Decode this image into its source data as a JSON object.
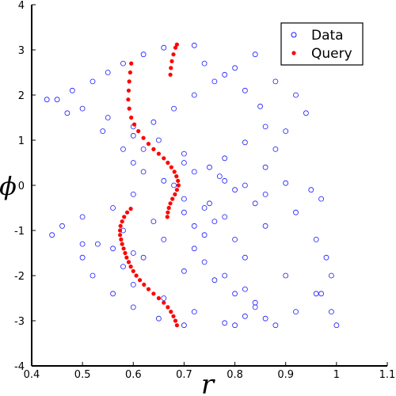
{
  "chart_data": {
    "type": "scatter",
    "title": "",
    "xlabel": "r",
    "ylabel": "ϕ",
    "xlim": [
      0.4,
      1.1
    ],
    "ylim": [
      -4,
      4
    ],
    "xticks": [
      "0.4",
      "0.5",
      "0.6",
      "0.7",
      "0.8",
      "0.9",
      "1",
      "1.1"
    ],
    "yticks": [
      "4",
      "3",
      "2",
      "1",
      "0",
      "-1",
      "-2",
      "-3",
      "-4"
    ],
    "grid": false,
    "legend": {
      "position": "top-right",
      "entries": [
        "Data",
        "Query"
      ]
    },
    "colors": {
      "data": "#1a1aff",
      "query": "#ff0000"
    },
    "series": [
      {
        "name": "Data",
        "marker": "open-circle",
        "sampled_points": [
          [
            0.45,
            1.9
          ],
          [
            0.48,
            2.1
          ],
          [
            0.52,
            2.3
          ],
          [
            0.55,
            2.5
          ],
          [
            0.58,
            2.7
          ],
          [
            0.62,
            2.9
          ],
          [
            0.66,
            3.05
          ],
          [
            0.72,
            3.1
          ],
          [
            0.5,
            1.7
          ],
          [
            0.55,
            1.5
          ],
          [
            0.6,
            1.3
          ],
          [
            0.65,
            1.0
          ],
          [
            0.7,
            0.7
          ],
          [
            0.75,
            0.4
          ],
          [
            0.78,
            0.1
          ],
          [
            0.8,
            -0.1
          ],
          [
            0.75,
            -0.4
          ],
          [
            0.7,
            -0.6
          ],
          [
            0.64,
            -0.8
          ],
          [
            0.58,
            -1.0
          ],
          [
            0.53,
            -1.3
          ],
          [
            0.5,
            -1.6
          ],
          [
            0.52,
            -2.0
          ],
          [
            0.56,
            -2.4
          ],
          [
            0.6,
            -2.7
          ],
          [
            0.65,
            -2.95
          ],
          [
            0.7,
            -3.1
          ],
          [
            0.43,
            1.9
          ],
          [
            0.47,
            1.6
          ],
          [
            0.54,
            1.2
          ],
          [
            0.62,
            0.8
          ],
          [
            0.7,
            0.5
          ],
          [
            0.77,
            0.2
          ],
          [
            0.82,
            0.0
          ],
          [
            0.86,
            -0.2
          ],
          [
            0.84,
            -0.4
          ],
          [
            0.78,
            -0.7
          ],
          [
            0.72,
            -0.9
          ],
          [
            0.66,
            -1.2
          ],
          [
            0.6,
            -1.5
          ],
          [
            0.58,
            -1.8
          ],
          [
            0.6,
            -2.2
          ],
          [
            0.66,
            -2.5
          ],
          [
            0.72,
            -2.8
          ],
          [
            0.78,
            -3.05
          ],
          [
            0.88,
            2.3
          ],
          [
            0.92,
            2.0
          ],
          [
            0.94,
            1.6
          ],
          [
            0.9,
            1.2
          ],
          [
            0.88,
            0.8
          ],
          [
            0.86,
            0.4
          ],
          [
            0.9,
            0.05
          ],
          [
            0.95,
            -0.1
          ],
          [
            0.97,
            -0.3
          ],
          [
            0.92,
            -0.6
          ],
          [
            0.86,
            -0.9
          ],
          [
            0.8,
            -1.2
          ],
          [
            0.82,
            -1.6
          ],
          [
            0.9,
            -2.0
          ],
          [
            0.97,
            -2.4
          ],
          [
            0.99,
            -2.8
          ],
          [
            1.0,
            -3.1
          ],
          [
            0.96,
            -1.2
          ],
          [
            0.98,
            -1.6
          ],
          [
            0.99,
            -2.0
          ],
          [
            0.96,
            -2.4
          ],
          [
            0.92,
            -2.8
          ],
          [
            0.88,
            -3.1
          ],
          [
            0.84,
            2.9
          ],
          [
            0.8,
            2.6
          ],
          [
            0.76,
            2.3
          ],
          [
            0.72,
            2.0
          ],
          [
            0.68,
            1.7
          ],
          [
            0.64,
            1.4
          ],
          [
            0.6,
            1.1
          ],
          [
            0.58,
            0.8
          ],
          [
            0.6,
            0.5
          ],
          [
            0.62,
            0.3
          ],
          [
            0.66,
            0.1
          ],
          [
            0.6,
            -0.2
          ],
          [
            0.56,
            -0.5
          ],
          [
            0.5,
            -0.7
          ],
          [
            0.46,
            -0.9
          ],
          [
            0.44,
            -1.1
          ],
          [
            0.5,
            -1.3
          ],
          [
            0.56,
            -1.4
          ],
          [
            0.62,
            -1.6
          ],
          [
            0.7,
            -1.9
          ],
          [
            0.76,
            -2.1
          ],
          [
            0.8,
            -2.4
          ],
          [
            0.84,
            -2.7
          ],
          [
            0.86,
            -2.95
          ],
          [
            0.74,
            2.7
          ],
          [
            0.78,
            2.45
          ],
          [
            0.82,
            2.1
          ],
          [
            0.85,
            1.75
          ],
          [
            0.86,
            1.3
          ],
          [
            0.82,
            0.95
          ],
          [
            0.78,
            0.6
          ],
          [
            0.72,
            0.3
          ],
          [
            0.68,
            0.0
          ],
          [
            0.7,
            -0.3
          ],
          [
            0.74,
            -0.5
          ],
          [
            0.76,
            -0.8
          ],
          [
            0.74,
            -1.1
          ],
          [
            0.72,
            -1.4
          ],
          [
            0.74,
            -1.7
          ],
          [
            0.78,
            -2.0
          ],
          [
            0.82,
            -2.3
          ],
          [
            0.84,
            -2.6
          ],
          [
            0.82,
            -2.9
          ],
          [
            0.8,
            -3.1
          ]
        ]
      },
      {
        "name": "Query",
        "marker": "filled-dot",
        "points": [
          [
            0.673,
            2.45
          ],
          [
            0.674,
            2.6
          ],
          [
            0.676,
            2.75
          ],
          [
            0.679,
            2.9
          ],
          [
            0.683,
            3.05
          ],
          [
            0.686,
            3.12
          ],
          [
            0.596,
            2.7
          ],
          [
            0.594,
            2.5
          ],
          [
            0.592,
            2.3
          ],
          [
            0.591,
            2.1
          ],
          [
            0.59,
            1.9
          ],
          [
            0.592,
            1.7
          ],
          [
            0.596,
            1.5
          ],
          [
            0.602,
            1.35
          ],
          [
            0.61,
            1.2
          ],
          [
            0.62,
            1.05
          ],
          [
            0.63,
            0.92
          ],
          [
            0.64,
            0.8
          ],
          [
            0.65,
            0.7
          ],
          [
            0.66,
            0.6
          ],
          [
            0.668,
            0.5
          ],
          [
            0.675,
            0.4
          ],
          [
            0.681,
            0.3
          ],
          [
            0.685,
            0.2
          ],
          [
            0.688,
            0.1
          ],
          [
            0.689,
            0.0
          ],
          [
            0.686,
            -0.1
          ],
          [
            0.682,
            -0.2
          ],
          [
            0.677,
            -0.3
          ],
          [
            0.673,
            -0.4
          ],
          [
            0.67,
            -0.5
          ],
          [
            0.668,
            -0.6
          ],
          [
            0.667,
            -0.7
          ],
          [
            0.595,
            -0.52
          ],
          [
            0.588,
            -0.6
          ],
          [
            0.582,
            -0.7
          ],
          [
            0.578,
            -0.8
          ],
          [
            0.575,
            -0.9
          ],
          [
            0.574,
            -1.0
          ],
          [
            0.574,
            -1.1
          ],
          [
            0.576,
            -1.2
          ],
          [
            0.578,
            -1.3
          ],
          [
            0.581,
            -1.4
          ],
          [
            0.584,
            -1.5
          ],
          [
            0.587,
            -1.6
          ],
          [
            0.591,
            -1.7
          ],
          [
            0.595,
            -1.8
          ],
          [
            0.6,
            -1.9
          ],
          [
            0.606,
            -2.0
          ],
          [
            0.613,
            -2.1
          ],
          [
            0.621,
            -2.2
          ],
          [
            0.63,
            -2.3
          ],
          [
            0.64,
            -2.4
          ],
          [
            0.65,
            -2.5
          ],
          [
            0.66,
            -2.6
          ],
          [
            0.668,
            -2.7
          ],
          [
            0.674,
            -2.8
          ],
          [
            0.679,
            -2.9
          ],
          [
            0.683,
            -3.0
          ],
          [
            0.686,
            -3.1
          ]
        ]
      }
    ]
  }
}
